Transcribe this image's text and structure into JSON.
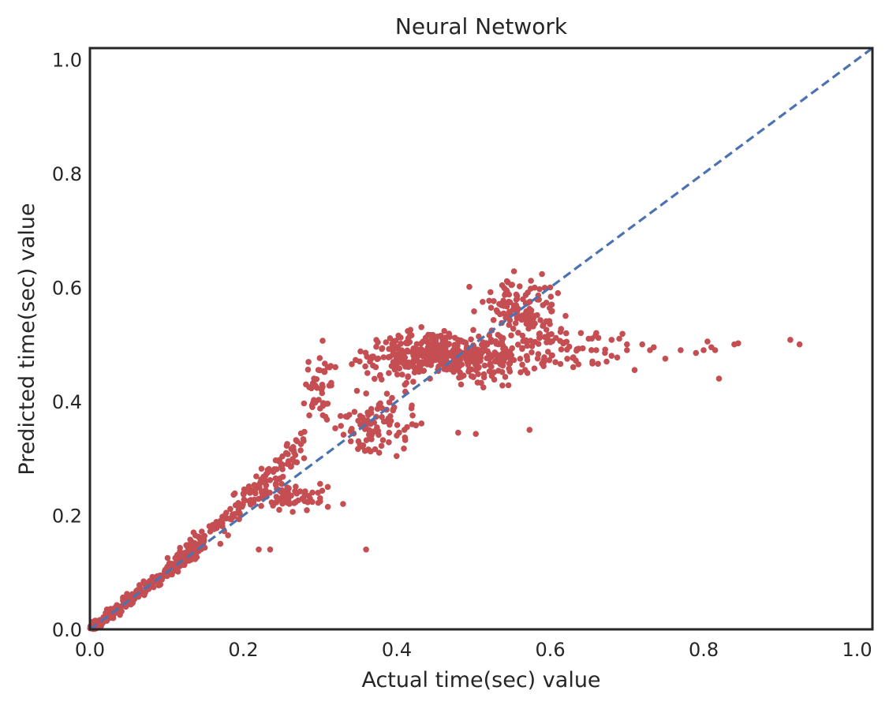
{
  "chart_data": {
    "type": "scatter",
    "title": "Neural Network",
    "xlabel": "Actual time(sec) value",
    "ylabel": "Predicted time(sec) value",
    "xlim": [
      0.0,
      1.02
    ],
    "ylim": [
      0.0,
      1.02
    ],
    "xticks": [
      "0.0",
      "0.2",
      "0.4",
      "0.6",
      "0.8",
      "1.0"
    ],
    "yticks": [
      "0.0",
      "0.2",
      "0.4",
      "0.6",
      "0.8",
      "1.0"
    ],
    "xtick_values": [
      0.0,
      0.2,
      0.4,
      0.6,
      0.8,
      1.0
    ],
    "ytick_values": [
      0.0,
      0.2,
      0.4,
      0.6,
      0.8,
      1.0
    ],
    "grid": false,
    "legend": "none",
    "reference_line": {
      "style": "dashed",
      "color": "#4c72b0",
      "x": [
        0.0,
        1.02
      ],
      "y": [
        0.0,
        1.02
      ]
    },
    "marker_color": "#c44e52",
    "clusters": [
      {
        "x_range": [
          0.0,
          0.15
        ],
        "center_slope": 1.0,
        "y_spread": 0.006,
        "count": 260
      },
      {
        "x_range": [
          0.1,
          0.2
        ],
        "center_slope": 1.1,
        "y_spread": 0.008,
        "count": 90
      },
      {
        "x_range": [
          0.2,
          0.28
        ],
        "center_slope": 1.15,
        "y_spread": 0.015,
        "count": 80
      },
      {
        "x_center": 0.25,
        "y_center": 0.23,
        "x_spread": 0.03,
        "y_spread": 0.012,
        "count": 70
      },
      {
        "x_center": 0.3,
        "y_center": 0.42,
        "x_spread": 0.01,
        "y_spread": 0.035,
        "count": 45
      },
      {
        "x_center": 0.37,
        "y_center": 0.36,
        "x_spread": 0.025,
        "y_spread": 0.025,
        "count": 90
      },
      {
        "x_center": 0.47,
        "y_center": 0.48,
        "x_spread": 0.05,
        "y_spread": 0.02,
        "count": 420
      },
      {
        "x_center": 0.56,
        "y_center": 0.56,
        "x_spread": 0.025,
        "y_spread": 0.025,
        "count": 110
      },
      {
        "x_center": 0.6,
        "y_center": 0.5,
        "x_spread": 0.04,
        "y_spread": 0.02,
        "count": 70
      }
    ],
    "points": [
      [
        0.36,
        0.14
      ],
      [
        0.22,
        0.14
      ],
      [
        0.235,
        0.14
      ],
      [
        0.33,
        0.22
      ],
      [
        0.48,
        0.345
      ],
      [
        0.503,
        0.343
      ],
      [
        0.573,
        0.35
      ],
      [
        0.42,
        0.36
      ],
      [
        0.425,
        0.358
      ],
      [
        0.41,
        0.35
      ],
      [
        0.53,
        0.56
      ],
      [
        0.62,
        0.55
      ],
      [
        0.64,
        0.52
      ],
      [
        0.66,
        0.49
      ],
      [
        0.68,
        0.48
      ],
      [
        0.7,
        0.49
      ],
      [
        0.71,
        0.455
      ],
      [
        0.73,
        0.49
      ],
      [
        0.75,
        0.475
      ],
      [
        0.77,
        0.49
      ],
      [
        0.79,
        0.485
      ],
      [
        0.8,
        0.49
      ],
      [
        0.805,
        0.505
      ],
      [
        0.815,
        0.49
      ],
      [
        0.82,
        0.44
      ],
      [
        0.84,
        0.5
      ],
      [
        0.845,
        0.502
      ],
      [
        0.913,
        0.508
      ],
      [
        0.925,
        0.5
      ],
      [
        0.66,
        0.52
      ],
      [
        0.68,
        0.508
      ],
      [
        0.69,
        0.51
      ],
      [
        0.7,
        0.5
      ],
      [
        0.63,
        0.46
      ],
      [
        0.655,
        0.47
      ],
      [
        0.65,
        0.51
      ],
      [
        0.72,
        0.5
      ],
      [
        0.735,
        0.495
      ],
      [
        0.81,
        0.495
      ],
      [
        0.6,
        0.6
      ],
      [
        0.61,
        0.59
      ],
      [
        0.17,
        0.15
      ],
      [
        0.145,
        0.16
      ],
      [
        0.18,
        0.165
      ],
      [
        0.26,
        0.22
      ],
      [
        0.29,
        0.24
      ],
      [
        0.28,
        0.235
      ],
      [
        0.3,
        0.23
      ],
      [
        0.31,
        0.25
      ],
      [
        0.39,
        0.345
      ],
      [
        0.4,
        0.34
      ],
      [
        0.34,
        0.33
      ],
      [
        0.35,
        0.33
      ],
      [
        0.365,
        0.47
      ],
      [
        0.31,
        0.46
      ],
      [
        0.32,
        0.46
      ],
      [
        0.29,
        0.39
      ],
      [
        0.27,
        0.33
      ],
      [
        0.265,
        0.32
      ],
      [
        0.275,
        0.325
      ]
    ]
  }
}
